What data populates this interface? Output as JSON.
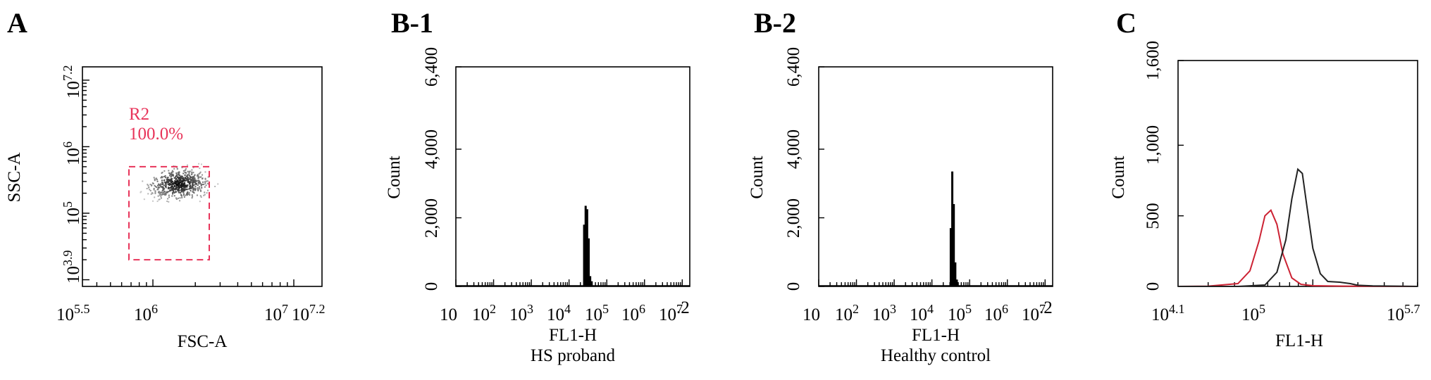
{
  "figure": {
    "panels": [
      {
        "id": "A",
        "label": "A"
      },
      {
        "id": "B-1",
        "label": "B-1"
      },
      {
        "id": "B-2",
        "label": "B-2"
      },
      {
        "id": "C",
        "label": "C"
      }
    ]
  },
  "colors": {
    "axis": "#000000",
    "gate": "#e8345a",
    "histogram": "#000000",
    "hs_curve": "#cc2233",
    "control_curve": "#222222"
  },
  "chart_data": [
    {
      "id": "A",
      "type": "scatter",
      "title": "",
      "xlabel": "FSC-A",
      "ylabel": "SSC-A",
      "x_scale": "log10",
      "y_scale": "log10",
      "xlim": [
        5.5,
        7.2
      ],
      "ylim": [
        3.9,
        7.2
      ],
      "x_ticks": [
        {
          "base": "10",
          "exp": "5.5",
          "value": 5.5
        },
        {
          "base": "10",
          "exp": "6",
          "value": 6
        },
        {
          "base": "10",
          "exp": "7",
          "value": 7
        },
        {
          "base": "10",
          "exp": "7.2",
          "value": 7.2
        }
      ],
      "y_ticks": [
        {
          "base": "10",
          "exp": "3.9",
          "value": 3.9
        },
        {
          "base": "10",
          "exp": "5",
          "value": 5
        },
        {
          "base": "10",
          "exp": "6",
          "value": 6
        },
        {
          "base": "10",
          "exp": "7.2",
          "value": 7.2
        }
      ],
      "gate": {
        "name": "R2",
        "percent": "100.0%",
        "x_range": [
          5.83,
          6.4
        ],
        "y_range": [
          4.3,
          5.7
        ]
      },
      "cluster": {
        "center_x": 6.18,
        "center_y": 5.45,
        "sd_x": 0.1,
        "sd_y": 0.11
      }
    },
    {
      "id": "B-1",
      "type": "bar",
      "title": "",
      "xlabel": "FL1-H",
      "sublabel": "HS proband",
      "ylabel": "Count",
      "x_scale": "log10",
      "xlim": [
        1,
        7.2
      ],
      "ylim": [
        0,
        6400
      ],
      "y_ticks": [
        {
          "label": "0",
          "value": 0
        },
        {
          "label": "2,000",
          "value": 2000
        },
        {
          "label": "4,000",
          "value": 4000
        },
        {
          "label": "6,400",
          "value": 6400
        }
      ],
      "x_ticks": [
        {
          "base": "10",
          "exp": "",
          "value": 1
        },
        {
          "base": "10",
          "exp": "2",
          "value": 2
        },
        {
          "base": "10",
          "exp": "3",
          "value": 3
        },
        {
          "base": "10",
          "exp": "4",
          "value": 4
        },
        {
          "base": "10",
          "exp": "5",
          "value": 5
        },
        {
          "base": "10",
          "exp": "6",
          "value": 6
        },
        {
          "base": "10",
          "exp": "7",
          "value": 7
        },
        {
          "base": "10",
          "exp": ".2",
          "value": 7.2
        }
      ],
      "bins": [
        {
          "x": 4.4,
          "y": 1800
        },
        {
          "x": 4.44,
          "y": 2350
        },
        {
          "x": 4.48,
          "y": 2250
        },
        {
          "x": 4.52,
          "y": 1400
        },
        {
          "x": 4.56,
          "y": 300
        },
        {
          "x": 4.6,
          "y": 150
        }
      ]
    },
    {
      "id": "B-2",
      "type": "bar",
      "title": "",
      "xlabel": "FL1-H",
      "sublabel": "Healthy control",
      "ylabel": "Count",
      "x_scale": "log10",
      "xlim": [
        1,
        7.2
      ],
      "ylim": [
        0,
        6400
      ],
      "y_ticks": [
        {
          "label": "0",
          "value": 0
        },
        {
          "label": "2,000",
          "value": 2000
        },
        {
          "label": "4,000",
          "value": 4000
        },
        {
          "label": "6,400",
          "value": 6400
        }
      ],
      "x_ticks": [
        {
          "base": "10",
          "exp": "",
          "value": 1
        },
        {
          "base": "10",
          "exp": "2",
          "value": 2
        },
        {
          "base": "10",
          "exp": "3",
          "value": 3
        },
        {
          "base": "10",
          "exp": "4",
          "value": 4
        },
        {
          "base": "10",
          "exp": "5",
          "value": 5
        },
        {
          "base": "10",
          "exp": "6",
          "value": 6
        },
        {
          "base": "10",
          "exp": "7",
          "value": 7
        },
        {
          "base": "10",
          "exp": ".2",
          "value": 7.2
        }
      ],
      "bins": [
        {
          "x": 4.5,
          "y": 1700
        },
        {
          "x": 4.54,
          "y": 3350
        },
        {
          "x": 4.58,
          "y": 2400
        },
        {
          "x": 4.62,
          "y": 700
        },
        {
          "x": 4.66,
          "y": 200
        }
      ]
    },
    {
      "id": "C",
      "type": "line",
      "title": "",
      "xlabel": "FL1-H",
      "ylabel": "Count",
      "x_scale": "log10",
      "xlim": [
        4.1,
        5.7
      ],
      "ylim": [
        0,
        1600
      ],
      "y_ticks": [
        {
          "label": "0",
          "value": 0
        },
        {
          "label": "500",
          "value": 500
        },
        {
          "label": "1,000",
          "value": 1000
        },
        {
          "label": "1,600",
          "value": 1600
        }
      ],
      "x_ticks": [
        {
          "base": "10",
          "exp": "4.1",
          "value": 4.1
        },
        {
          "base": "10",
          "exp": "5",
          "value": 5
        },
        {
          "base": "10",
          "exp": "5.7",
          "value": 5.7
        }
      ],
      "series": [
        {
          "color": "#cc2233",
          "x": [
            4.1,
            4.3,
            4.5,
            4.58,
            4.64,
            4.68,
            4.72,
            4.76,
            4.8,
            4.86,
            4.92,
            5.0,
            5.2,
            5.7
          ],
          "y": [
            0,
            2,
            20,
            110,
            320,
            500,
            540,
            440,
            230,
            60,
            15,
            5,
            2,
            0
          ]
        },
        {
          "color": "#222222",
          "x": [
            4.1,
            4.5,
            4.68,
            4.76,
            4.82,
            4.86,
            4.9,
            4.93,
            4.96,
            5.0,
            5.05,
            5.1,
            5.18,
            5.25,
            5.3,
            5.4,
            5.55,
            5.7
          ],
          "y": [
            0,
            0,
            10,
            100,
            330,
            620,
            830,
            800,
            570,
            270,
            90,
            35,
            30,
            20,
            8,
            4,
            2,
            0
          ]
        }
      ]
    }
  ]
}
